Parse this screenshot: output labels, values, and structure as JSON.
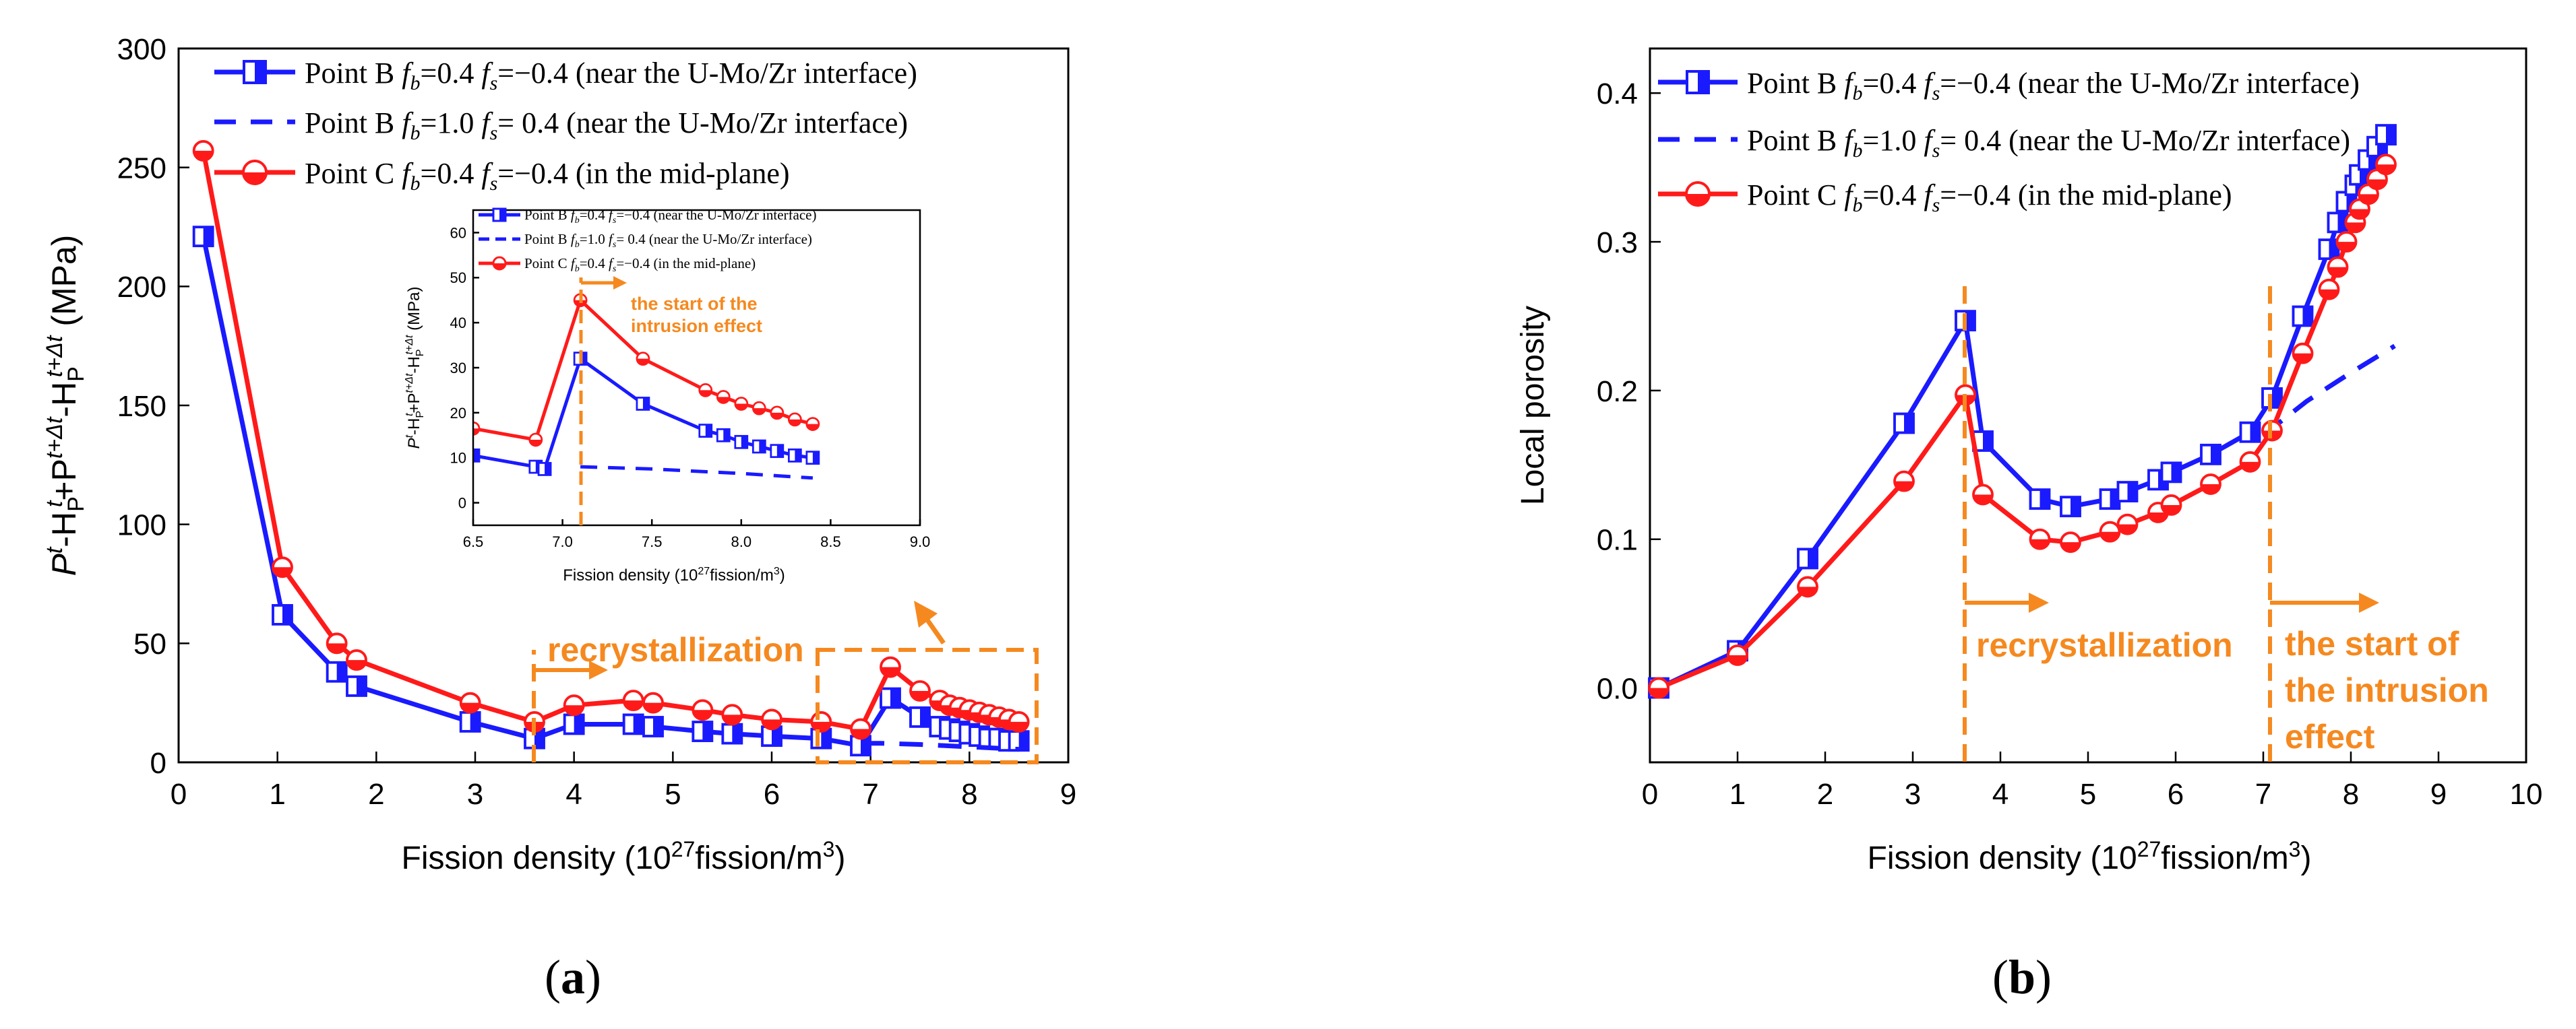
{
  "colors": {
    "blue": "#1a1aff",
    "red": "#ff1a1a",
    "orange": "#f5891f",
    "axis": "#000000"
  },
  "panels": {
    "a": {
      "label": "(a)",
      "label_open": "(",
      "label_letter": "a",
      "label_close": ")"
    },
    "b": {
      "label": "(b)",
      "label_open": "(",
      "label_letter": "b",
      "label_close": ")"
    }
  },
  "chart_data": [
    {
      "id": "a",
      "type": "line",
      "xlabel": "Fission density (10^27 fission/m^3)",
      "xlabel_parts": {
        "pre": "Fission density (10",
        "sup": "27",
        "mid": "fission/m",
        "sup2": "3",
        "post": ")"
      },
      "ylabel": "P^t-H_P^t+P^(t+Δt)-H_P^(t+Δt) (MPa)",
      "ylabel_parts": [
        "P",
        "t",
        "-H",
        "P",
        "t",
        "+P",
        "t+Δt",
        "-H",
        "P",
        "t+Δt",
        " (MPa)"
      ],
      "xlim": [
        0,
        9
      ],
      "ylim": [
        0,
        300
      ],
      "xticks": [
        0,
        1,
        2,
        3,
        4,
        5,
        6,
        7,
        8,
        9
      ],
      "yticks": [
        0,
        50,
        100,
        150,
        200,
        250,
        300
      ],
      "legend": [
        {
          "pre": "Point B ",
          "fb": "=0.4 ",
          "fs": "=−0.4 (near the U-Mo/Zr interface)"
        },
        {
          "pre": "Point B ",
          "fb": "=1.0 ",
          "fs": "=  0.4 (near the U-Mo/Zr interface)"
        },
        {
          "pre": "Point C ",
          "fb": "=0.4 ",
          "fs": "=−0.4 (in the mid-plane)"
        }
      ],
      "annotations": {
        "recrystallization": "recrystallization"
      },
      "series": [
        {
          "name": "Point B fb=0.4 fs=−0.4 (near the U-Mo/Zr interface)",
          "color": "#1a1aff",
          "style": "solid",
          "marker": "half-square",
          "x": [
            0.25,
            1.05,
            1.6,
            1.8,
            2.95,
            3.6,
            4.0,
            4.6,
            4.8,
            5.3,
            5.6,
            6.0,
            6.5,
            6.9,
            7.2,
            7.5,
            7.7,
            7.8,
            7.9,
            8.0,
            8.1,
            8.2,
            8.3,
            8.4,
            8.5
          ],
          "y": [
            221,
            62,
            38,
            32,
            17,
            10,
            16,
            16,
            15,
            13,
            12,
            11,
            10,
            7,
            27,
            19,
            15,
            14,
            13,
            12,
            11,
            10,
            10,
            9,
            9
          ]
        },
        {
          "name": "Point B fb=1.0 fs=0.4 (near the U-Mo/Zr interface)",
          "color": "#1a1aff",
          "style": "dashed",
          "marker": "none",
          "x": [
            6.9,
            7.1,
            7.5,
            8.0,
            8.5
          ],
          "y": [
            8,
            8,
            7.5,
            6.5,
            5.5
          ]
        },
        {
          "name": "Point C fb=0.4 fs=−0.4 (in the mid-plane)",
          "color": "#ff1a1a",
          "style": "solid",
          "marker": "half-circle",
          "x": [
            0.25,
            1.05,
            1.6,
            1.8,
            2.95,
            3.6,
            4.0,
            4.6,
            4.8,
            5.3,
            5.6,
            6.0,
            6.5,
            6.9,
            7.2,
            7.5,
            7.7,
            7.8,
            7.9,
            8.0,
            8.1,
            8.2,
            8.3,
            8.4,
            8.5
          ],
          "y": [
            257,
            82,
            50,
            43,
            25,
            17,
            24,
            26,
            25,
            22,
            20,
            18,
            17,
            14,
            40,
            30,
            26,
            24,
            23,
            22,
            21,
            20,
            19,
            18,
            17
          ]
        }
      ],
      "inset": {
        "xlim": [
          6.5,
          9.0
        ],
        "ylim": [
          -5,
          65
        ],
        "xticks": [
          "6.5",
          "7.0",
          "7.5",
          "8.0",
          "8.5",
          "9.0"
        ],
        "yticks": [
          0,
          10,
          20,
          30,
          40,
          50,
          60
        ],
        "xlabel": "Fission density (10^27 fission/m^3)",
        "xlabel_parts": {
          "pre": "Fission density (10",
          "sup": "27",
          "mid": "fission/m",
          "sup2": "3",
          "post": ")"
        },
        "ylabel": "P^t-H_P^t+P^(t+Δt)-H_P^(t+Δt) (MPa)",
        "ylabel_parts": [
          "P",
          "t",
          "-H",
          "P",
          "t",
          "+P",
          "t+Δt",
          "-H",
          "P",
          "t+Δt",
          " (MPa)"
        ],
        "annotation_line1": "the start of the",
        "annotation_line2": "intrusion effect",
        "legend": [
          {
            "pre": "Point B ",
            "fb": "=0.4 ",
            "fs": "=−0.4 (near the U-Mo/Zr interface)"
          },
          {
            "pre": "Point B ",
            "fb": "=1.0 ",
            "fs": "=  0.4 (near the U-Mo/Zr interface)"
          },
          {
            "pre": "Point C ",
            "fb": "=0.4 ",
            "fs": "=−0.4 (in the mid-plane)"
          }
        ],
        "series": [
          {
            "name": "Point B fb=0.4 fs=−0.4",
            "color": "#1a1aff",
            "style": "solid",
            "marker": "half-square",
            "x": [
              6.5,
              6.85,
              6.9,
              7.1,
              7.45,
              7.8,
              7.9,
              8.0,
              8.1,
              8.2,
              8.3,
              8.4
            ],
            "y": [
              10.5,
              8,
              7.5,
              32,
              22,
              16,
              15,
              13.5,
              12.5,
              11.5,
              10.5,
              10
            ]
          },
          {
            "name": "Point B fb=1.0 fs=0.4",
            "color": "#1a1aff",
            "style": "dashed",
            "marker": "none",
            "x": [
              7.1,
              7.5,
              8.0,
              8.4
            ],
            "y": [
              8,
              7.5,
              6.5,
              5.5
            ]
          },
          {
            "name": "Point C fb=0.4 fs=−0.4",
            "color": "#ff1a1a",
            "style": "solid",
            "marker": "half-circle",
            "x": [
              6.5,
              6.85,
              7.1,
              7.45,
              7.8,
              7.9,
              8.0,
              8.1,
              8.2,
              8.3,
              8.4
            ],
            "y": [
              16.5,
              14,
              45,
              32,
              25,
              23.5,
              22,
              21,
              20,
              18.5,
              17.5
            ]
          }
        ]
      }
    },
    {
      "id": "b",
      "type": "line",
      "xlabel": "Fission density (10^27 fission/m^3)",
      "xlabel_parts": {
        "pre": "Fission density (10",
        "sup": "27",
        "mid": "fission/m",
        "sup2": "3",
        "post": ")"
      },
      "ylabel": "Local porosity",
      "xlim": [
        0,
        10
      ],
      "ylim": [
        -0.05,
        0.43
      ],
      "xticks": [
        0,
        1,
        2,
        3,
        4,
        5,
        6,
        7,
        8,
        9,
        10
      ],
      "yticks": [
        "0.0",
        "0.1",
        "0.2",
        "0.3",
        "0.4"
      ],
      "legend": [
        {
          "pre": "Point B ",
          "fb": "=0.4 ",
          "fs": "=−0.4 (near the U-Mo/Zr interface)"
        },
        {
          "pre": "Point B ",
          "fb": "=1.0 ",
          "fs": "=  0.4 (near the U-Mo/Zr interface)"
        },
        {
          "pre": "Point C ",
          "fb": "=0.4 ",
          "fs": "=−0.4 (in the mid-plane)"
        }
      ],
      "annotations": {
        "recrystallization": "recrystallization",
        "intrusion": [
          "the start of",
          "the intrusion",
          "effect"
        ]
      },
      "series": [
        {
          "name": "Point B fb=0.4 fs=−0.4 (near the U-Mo/Zr interface)",
          "color": "#1a1aff",
          "style": "solid",
          "marker": "half-square",
          "x": [
            0.1,
            1.0,
            1.8,
            2.9,
            3.6,
            3.8,
            4.45,
            4.8,
            5.25,
            5.45,
            5.8,
            5.95,
            6.4,
            6.85,
            7.1,
            7.45,
            7.75,
            7.85,
            7.95,
            8.05,
            8.1,
            8.2,
            8.3,
            8.4
          ],
          "y": [
            0.0,
            0.025,
            0.087,
            0.178,
            0.247,
            0.166,
            0.127,
            0.122,
            0.127,
            0.132,
            0.14,
            0.145,
            0.157,
            0.172,
            0.195,
            0.25,
            0.295,
            0.313,
            0.327,
            0.338,
            0.345,
            0.355,
            0.364,
            0.372
          ]
        },
        {
          "name": "Point B fb=1.0 fs=0.4 (near the U-Mo/Zr interface)",
          "color": "#1a1aff",
          "style": "dashed",
          "marker": "none",
          "x": [
            7.0,
            7.5,
            8.0,
            8.5
          ],
          "y": [
            0.17,
            0.193,
            0.212,
            0.23
          ]
        },
        {
          "name": "Point C fb=0.4 fs=−0.4 (in the mid-plane)",
          "color": "#ff1a1a",
          "style": "solid",
          "marker": "half-circle",
          "x": [
            0.1,
            1.0,
            1.8,
            2.9,
            3.6,
            3.8,
            4.45,
            4.8,
            5.25,
            5.45,
            5.8,
            5.95,
            6.4,
            6.85,
            7.1,
            7.45,
            7.75,
            7.85,
            7.95,
            8.05,
            8.1,
            8.2,
            8.3,
            8.4
          ],
          "y": [
            0.0,
            0.022,
            0.068,
            0.139,
            0.197,
            0.13,
            0.1,
            0.098,
            0.105,
            0.11,
            0.118,
            0.123,
            0.137,
            0.152,
            0.173,
            0.225,
            0.268,
            0.283,
            0.3,
            0.313,
            0.322,
            0.332,
            0.342,
            0.352
          ]
        }
      ]
    }
  ]
}
